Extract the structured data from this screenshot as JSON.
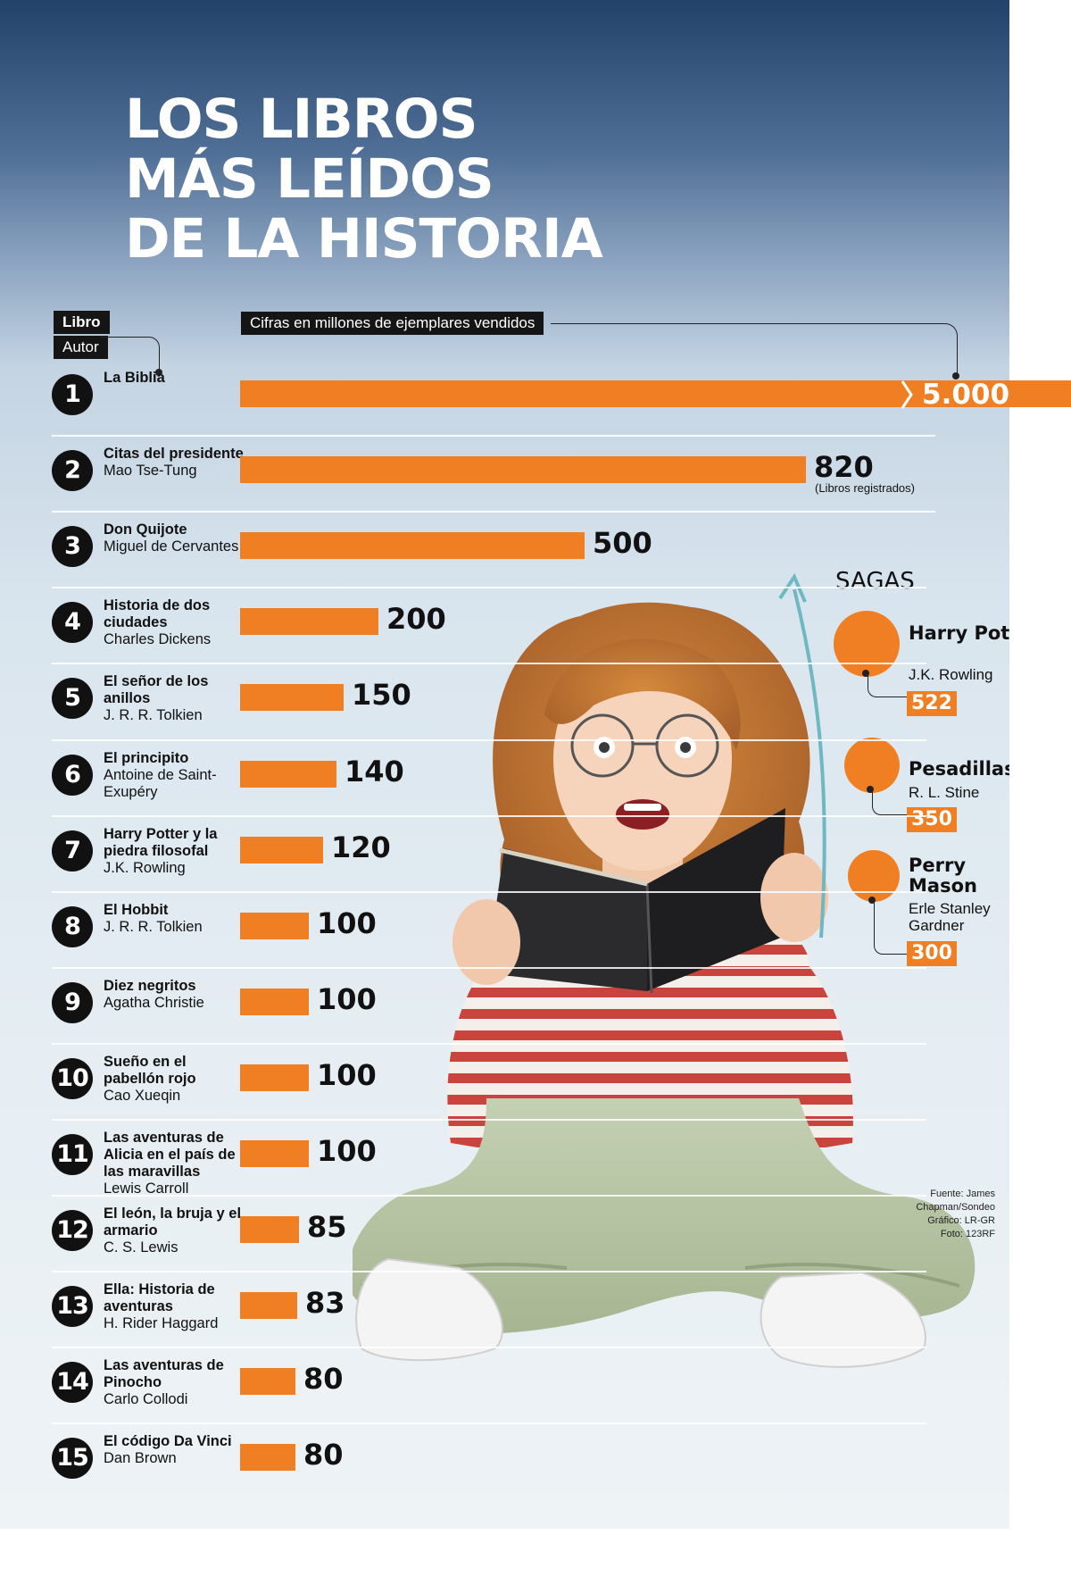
{
  "title_lines": [
    "LOS LIBROS",
    "MÁS LEÍDOS",
    "DE LA HISTORIA"
  ],
  "labels": {
    "libro": "Libro",
    "autor": "Autor",
    "cifras": "Cifras en millones de ejemplares vendidos",
    "registrados": "(Libros registrados)",
    "sagas": "SAGAS"
  },
  "colors": {
    "bar": "#ef7f22",
    "ink": "#111111",
    "arrow": "#6fb8c2"
  },
  "chart_data": {
    "type": "bar",
    "orientation": "horizontal",
    "unit": "millones de ejemplares vendidos",
    "axis_break_on": 1,
    "items": [
      {
        "rank": "1",
        "book": "La Biblia",
        "author": "",
        "value": 5000,
        "label": "5.000"
      },
      {
        "rank": "2",
        "book": "Citas del presidente",
        "author": "Mao Tse-Tung",
        "value": 820,
        "label": "820"
      },
      {
        "rank": "3",
        "book": "Don Quijote",
        "author": "Miguel de Cervantes",
        "value": 500,
        "label": "500"
      },
      {
        "rank": "4",
        "book": "Historia de dos ciudades",
        "author": "Charles Dickens",
        "value": 200,
        "label": "200"
      },
      {
        "rank": "5",
        "book": "El señor de los anillos",
        "author": "J. R. R. Tolkien",
        "value": 150,
        "label": "150"
      },
      {
        "rank": "6",
        "book": "El principito",
        "author": "Antoine de Saint-Exupéry",
        "value": 140,
        "label": "140"
      },
      {
        "rank": "7",
        "book": "Harry Potter y la piedra filosofal",
        "author": "J.K. Rowling",
        "value": 120,
        "label": "120"
      },
      {
        "rank": "8",
        "book": "El Hobbit",
        "author": "J. R. R. Tolkien",
        "value": 100,
        "label": "100"
      },
      {
        "rank": "9",
        "book": "Diez negritos",
        "author": "Agatha Christie",
        "value": 100,
        "label": "100"
      },
      {
        "rank": "10",
        "book": "Sueño en el pabellón rojo",
        "author": "Cao Xueqin",
        "value": 100,
        "label": "100"
      },
      {
        "rank": "11",
        "book": "Las aventuras de Alicia en el país de las maravillas",
        "author": "Lewis Carroll",
        "value": 100,
        "label": "100"
      },
      {
        "rank": "12",
        "book": "El león, la bruja y el armario",
        "author": "C. S. Lewis",
        "value": 85,
        "label": "85"
      },
      {
        "rank": "13",
        "book": "Ella: Historia de aventuras",
        "author": "H. Rider Haggard",
        "value": 83,
        "label": "83"
      },
      {
        "rank": "14",
        "book": "Las aventuras de Pinocho",
        "author": "Carlo Collodi",
        "value": 80,
        "label": "80"
      },
      {
        "rank": "15",
        "book": "El código Da Vinci",
        "author": "Dan Brown",
        "value": 80,
        "label": "80"
      }
    ],
    "sagas": [
      {
        "name": "Harry Potter",
        "author": "J.K. Rowling",
        "value": 522,
        "label": "522"
      },
      {
        "name": "Pesadillas",
        "author": "R. L. Stine",
        "value": 350,
        "label": "350"
      },
      {
        "name": "Perry Mason",
        "author": "Erle Stanley Gardner",
        "value": 300,
        "label": "300"
      }
    ]
  },
  "credits": [
    "Fuente: James Chapman/Sondeo",
    "Gráfico: LR-GR",
    "Foto: 123RF"
  ]
}
